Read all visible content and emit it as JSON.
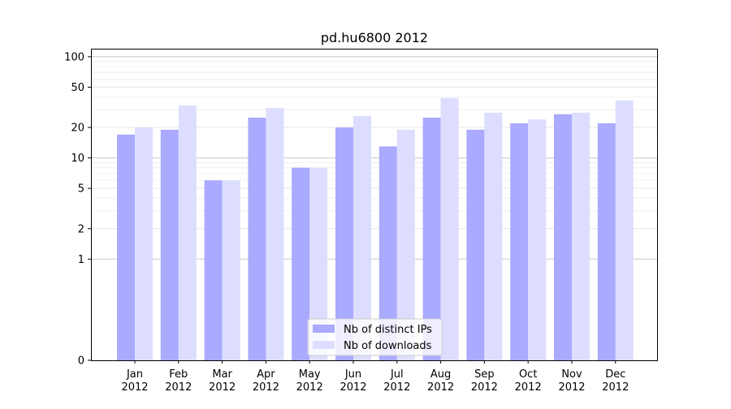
{
  "chart_data": {
    "type": "bar",
    "title": "pd.hu6800 2012",
    "xlabel": "",
    "ylabel": "",
    "yscale": "symlog",
    "ylim": [
      0,
      120
    ],
    "y_ticks": [
      0,
      1,
      2,
      5,
      10,
      20,
      50,
      100
    ],
    "grid": "horizontal",
    "legend_position": "lower-center",
    "categories": [
      "Jan\n2012",
      "Feb\n2012",
      "Mar\n2012",
      "Apr\n2012",
      "May\n2012",
      "Jun\n2012",
      "Jul\n2012",
      "Aug\n2012",
      "Sep\n2012",
      "Oct\n2012",
      "Nov\n2012",
      "Dec\n2012"
    ],
    "series": [
      {
        "name": "Nb of distinct IPs",
        "color": "#aaaaff",
        "values": [
          17,
          19,
          6,
          25,
          8,
          20,
          13,
          25,
          19,
          22,
          27,
          22
        ]
      },
      {
        "name": "Nb of downloads",
        "color": "#ddddff",
        "values": [
          20,
          33,
          6,
          31,
          8,
          26,
          19,
          39,
          28,
          24,
          28,
          37
        ]
      }
    ]
  }
}
